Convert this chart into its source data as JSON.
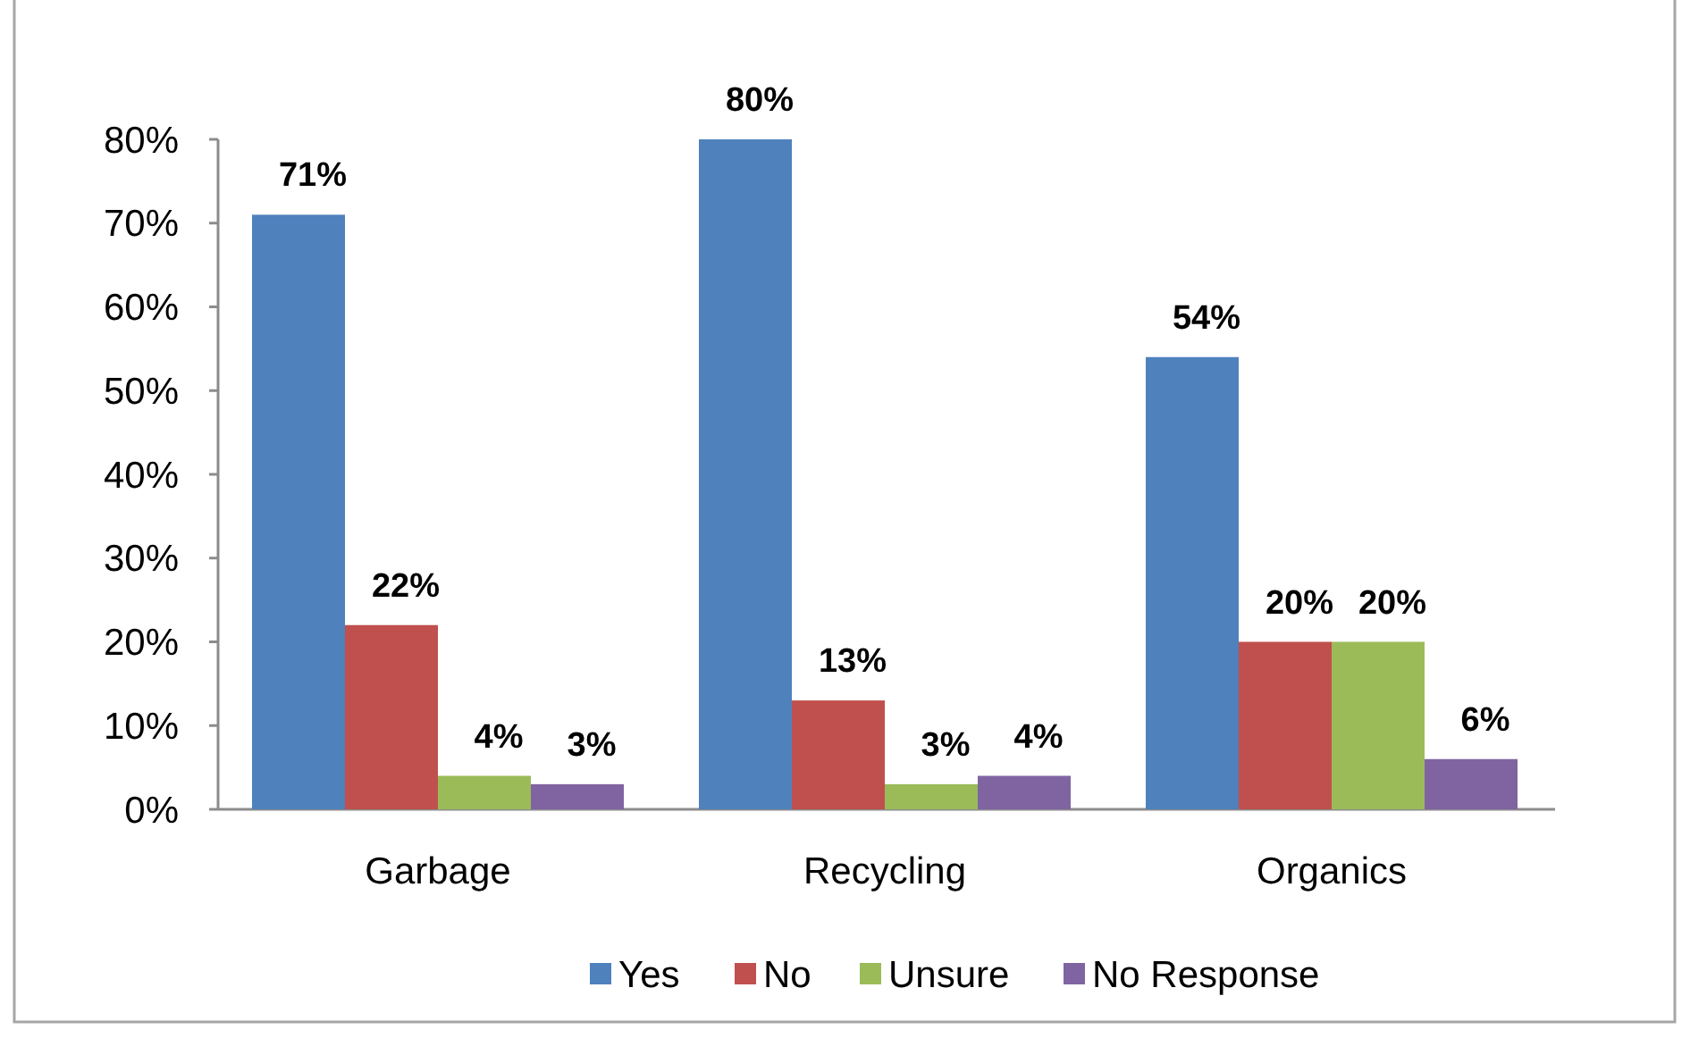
{
  "chart_data": {
    "type": "bar",
    "categories": [
      "Garbage",
      "Recycling",
      "Organics"
    ],
    "series": [
      {
        "name": "Yes",
        "color": "#4f81bd",
        "values": [
          71,
          80,
          54
        ],
        "value_labels": [
          "71%",
          "80%",
          "54%"
        ]
      },
      {
        "name": "No",
        "color": "#c0504d",
        "values": [
          22,
          13,
          20
        ],
        "value_labels": [
          "22%",
          "13%",
          "20%"
        ]
      },
      {
        "name": "Unsure",
        "color": "#9bbb59",
        "values": [
          4,
          3,
          20
        ],
        "value_labels": [
          "4%",
          "3%",
          "20%"
        ]
      },
      {
        "name": "No Response",
        "color": "#8064a2",
        "values": [
          3,
          4,
          6
        ],
        "value_labels": [
          "3%",
          "4%",
          "6%"
        ]
      }
    ],
    "ylim": [
      0,
      80
    ],
    "yticks": [
      {
        "value": 0,
        "label": "0%"
      },
      {
        "value": 10,
        "label": "10%"
      },
      {
        "value": 20,
        "label": "20%"
      },
      {
        "value": 30,
        "label": "30%"
      },
      {
        "value": 40,
        "label": "40%"
      },
      {
        "value": 50,
        "label": "50%"
      },
      {
        "value": 60,
        "label": "60%"
      },
      {
        "value": 70,
        "label": "70%"
      },
      {
        "value": 80,
        "label": "80%"
      }
    ],
    "grid": false,
    "legend": "bottom"
  }
}
